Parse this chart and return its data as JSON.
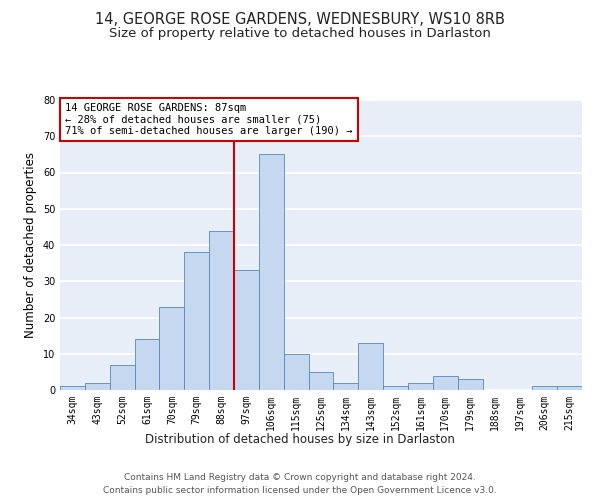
{
  "title": "14, GEORGE ROSE GARDENS, WEDNESBURY, WS10 8RB",
  "subtitle": "Size of property relative to detached houses in Darlaston",
  "xlabel": "Distribution of detached houses by size in Darlaston",
  "ylabel": "Number of detached properties",
  "categories": [
    "34sqm",
    "43sqm",
    "52sqm",
    "61sqm",
    "70sqm",
    "79sqm",
    "88sqm",
    "97sqm",
    "106sqm",
    "115sqm",
    "125sqm",
    "134sqm",
    "143sqm",
    "152sqm",
    "161sqm",
    "170sqm",
    "179sqm",
    "188sqm",
    "197sqm",
    "206sqm",
    "215sqm"
  ],
  "values": [
    1,
    2,
    7,
    14,
    23,
    38,
    44,
    33,
    65,
    10,
    5,
    2,
    13,
    1,
    2,
    4,
    3,
    0,
    0,
    1,
    1
  ],
  "bar_color": "#c5d8f0",
  "bar_edge_color": "#5588bb",
  "vline_index": 6,
  "vline_color": "#cc0000",
  "annotation_text": "14 GEORGE ROSE GARDENS: 87sqm\n← 28% of detached houses are smaller (75)\n71% of semi-detached houses are larger (190) →",
  "annotation_box_color": "#cc0000",
  "ylim": [
    0,
    80
  ],
  "yticks": [
    0,
    10,
    20,
    30,
    40,
    50,
    60,
    70,
    80
  ],
  "footnote_line1": "Contains HM Land Registry data © Crown copyright and database right 2024.",
  "footnote_line2": "Contains public sector information licensed under the Open Government Licence v3.0.",
  "background_color": "#e8eef8",
  "grid_color": "#ffffff",
  "title_fontsize": 10.5,
  "subtitle_fontsize": 9.5,
  "label_fontsize": 8.5,
  "tick_fontsize": 7,
  "footnote_fontsize": 6.5,
  "annotation_fontsize": 7.5
}
